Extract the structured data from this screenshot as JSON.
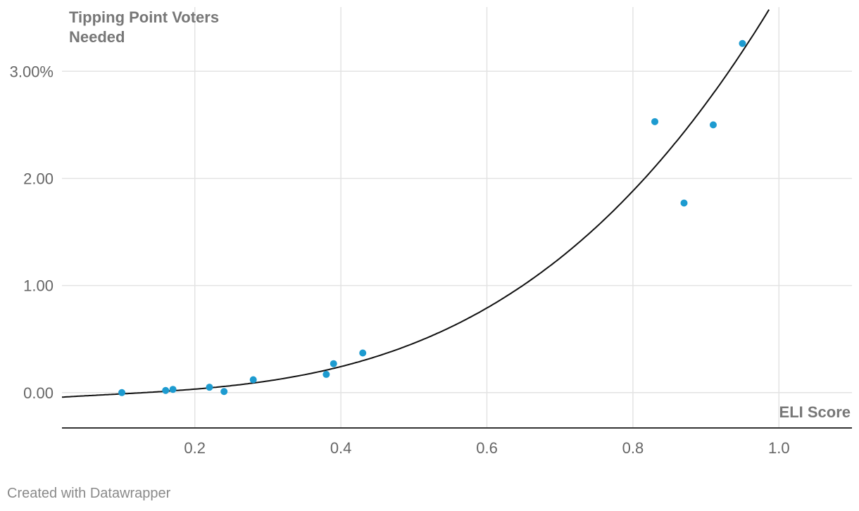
{
  "credit": "Created with Datawrapper",
  "chart_data": {
    "type": "scatter",
    "title": "",
    "xlabel": "ELI Score",
    "ylabel": "Tipping Point Voters Needed",
    "xlim": [
      0.018,
      1.1
    ],
    "ylim": [
      -0.33,
      3.6
    ],
    "x_ticks": [
      0.2,
      0.4,
      0.6,
      0.8,
      1.0
    ],
    "x_tick_labels": [
      "0.2",
      "0.4",
      "0.6",
      "0.8",
      "1.0"
    ],
    "y_ticks": [
      0,
      1,
      2,
      3
    ],
    "y_tick_labels": [
      "0.00",
      "1.00",
      "2.00",
      "3.00%"
    ],
    "grid": true,
    "points": [
      {
        "x": 0.1,
        "y": 0.0
      },
      {
        "x": 0.16,
        "y": 0.02
      },
      {
        "x": 0.17,
        "y": 0.03
      },
      {
        "x": 0.22,
        "y": 0.05
      },
      {
        "x": 0.24,
        "y": 0.01
      },
      {
        "x": 0.28,
        "y": 0.12
      },
      {
        "x": 0.38,
        "y": 0.17
      },
      {
        "x": 0.39,
        "y": 0.27
      },
      {
        "x": 0.43,
        "y": 0.37
      },
      {
        "x": 0.83,
        "y": 2.53
      },
      {
        "x": 0.87,
        "y": 1.77
      },
      {
        "x": 0.91,
        "y": 2.5
      },
      {
        "x": 0.95,
        "y": 3.26
      }
    ],
    "trendline": {
      "type": "polynomial",
      "coefficients": [
        -0.05,
        0.44,
        -1.01,
        4.35
      ]
    },
    "colors": {
      "point": "#1d9bd0",
      "trendline": "#111111",
      "grid": "#e3e3e3",
      "axis": "#333333"
    }
  }
}
